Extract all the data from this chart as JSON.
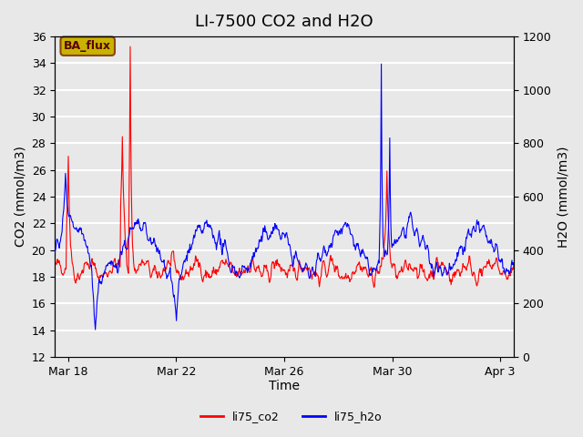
{
  "title": "LI-7500 CO2 and H2O",
  "xlabel": "Time",
  "ylabel_left": "CO2 (mmol/m3)",
  "ylabel_right": "H2O (mmol/m3)",
  "ylim_left": [
    12,
    36
  ],
  "ylim_right": [
    0,
    1200
  ],
  "yticks_left": [
    12,
    14,
    16,
    18,
    20,
    22,
    24,
    26,
    28,
    30,
    32,
    34,
    36
  ],
  "yticks_right": [
    0,
    200,
    400,
    600,
    800,
    1000,
    1200
  ],
  "xtick_labels": [
    "Mar 18",
    "Mar 22",
    "Mar 26",
    "Mar 30",
    "Apr 3"
  ],
  "bg_color": "#e8e8e8",
  "plot_bg_color": "#e8e8e8",
  "grid_color": "white",
  "line_co2_color": "red",
  "line_h2o_color": "blue",
  "annotation_text": "BA_flux",
  "annotation_bg": "#c8b400",
  "annotation_border": "#8b4513",
  "legend_co2": "li75_co2",
  "legend_h2o": "li75_h2o",
  "title_fontsize": 13,
  "axis_label_fontsize": 10,
  "tick_fontsize": 9
}
